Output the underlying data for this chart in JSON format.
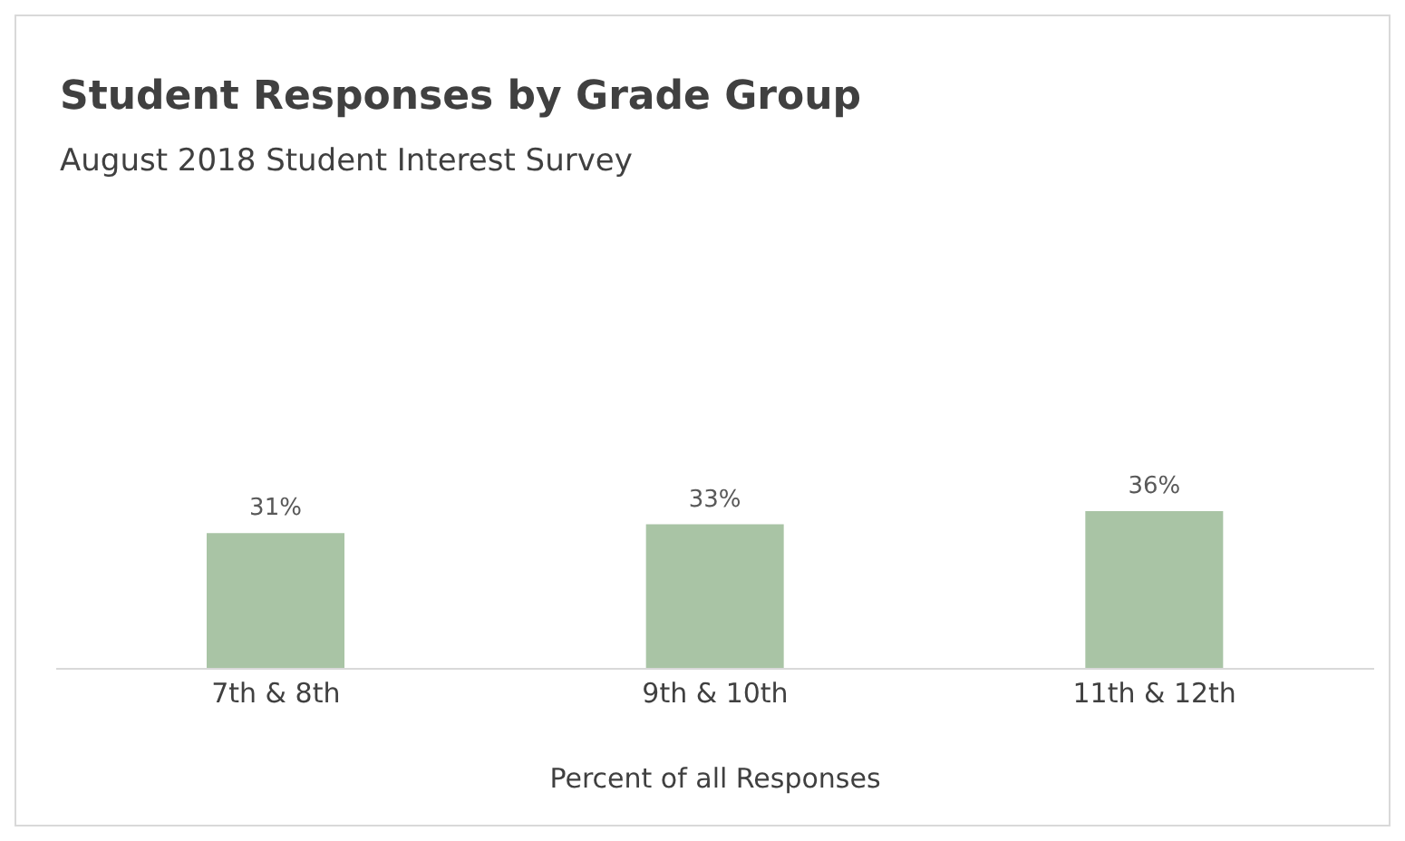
{
  "chart_data": {
    "type": "bar",
    "title": "Student Responses by Grade Group",
    "subtitle": "August 2018 Student Interest Survey",
    "xlabel": "Percent of all Responses",
    "categories": [
      "7th & 8th",
      "9th & 10th",
      "11th & 12th"
    ],
    "values": [
      31,
      33,
      36
    ],
    "value_labels": [
      "31%",
      "33%",
      "36%"
    ],
    "color": "#a9c4a5",
    "legend": false,
    "grid": false
  }
}
